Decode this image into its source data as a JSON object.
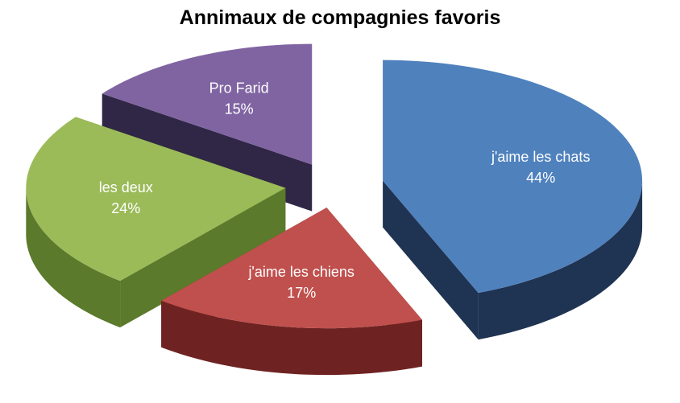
{
  "chart_data": {
    "type": "pie",
    "title": "Annimaux de compagnies favoris",
    "three_d": true,
    "exploded": true,
    "legend": "none",
    "slices": [
      {
        "label": "j'aime les chats",
        "value": 44,
        "display": "44%",
        "color": "#4F81BD",
        "side_color": "#1F3352"
      },
      {
        "label": "j'aime les chiens",
        "value": 17,
        "display": "17%",
        "color": "#C0504D",
        "side_color": "#6E2322"
      },
      {
        "label": "les deux",
        "value": 24,
        "display": "24%",
        "color": "#9BBB59",
        "side_color": "#5C7A2B"
      },
      {
        "label": "Pro Farid",
        "value": 15,
        "display": "15%",
        "color": "#8064A2",
        "side_color": "#2F2745"
      }
    ]
  }
}
